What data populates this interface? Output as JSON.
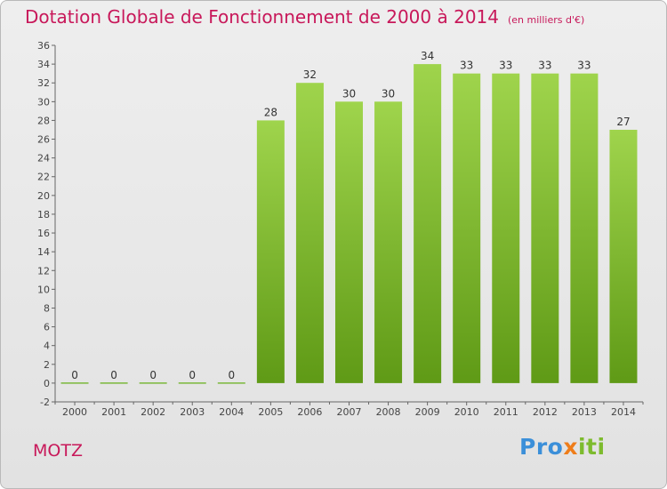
{
  "header": {
    "title": "Dotation Globale de Fonctionnement de 2000 à 2014",
    "subtitle": "(en milliers d'€)"
  },
  "commune": "MOTZ",
  "logo": {
    "part1": "Pro",
    "part2": "x",
    "part3": "iti"
  },
  "colors": {
    "bar": "#8cc63f",
    "title": "#c8185a",
    "axis": "#666666"
  },
  "chart_data": {
    "type": "bar",
    "categories": [
      "2000",
      "2001",
      "2002",
      "2003",
      "2004",
      "2005",
      "2006",
      "2007",
      "2008",
      "2009",
      "2010",
      "2011",
      "2012",
      "2013",
      "2014"
    ],
    "values": [
      0,
      0,
      0,
      0,
      0,
      28,
      32,
      30,
      30,
      34,
      33,
      33,
      33,
      33,
      27
    ],
    "ylim": [
      -2,
      36
    ],
    "yticks": [
      -2,
      0,
      2,
      4,
      6,
      8,
      10,
      12,
      14,
      16,
      18,
      20,
      22,
      24,
      26,
      28,
      30,
      32,
      34,
      36
    ],
    "xlabel": "",
    "ylabel": "",
    "grid": false,
    "data_labels": true
  }
}
